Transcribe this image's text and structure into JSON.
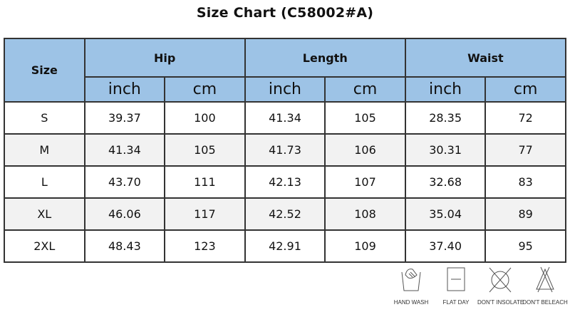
{
  "title": "Size Chart  (C58002#A)",
  "headers": {
    "size": "Size",
    "groups": [
      "Hip",
      "Length",
      "Waist"
    ],
    "units": [
      "inch",
      "cm",
      "inch",
      "cm",
      "inch",
      "cm"
    ]
  },
  "rows": [
    [
      "S",
      "39.37",
      "100",
      "41.34",
      "105",
      "28.35",
      "72"
    ],
    [
      "M",
      "41.34",
      "105",
      "41.73",
      "106",
      "30.31",
      "77"
    ],
    [
      "L",
      "43.70",
      "111",
      "42.13",
      "107",
      "32.68",
      "83"
    ],
    [
      "XL",
      "46.06",
      "117",
      "42.52",
      "108",
      "35.04",
      "89"
    ],
    [
      "2XL",
      "48.43",
      "123",
      "42.91",
      "109",
      "37.40",
      "95"
    ]
  ],
  "care": [
    {
      "icon": "hand-wash-icon",
      "label": "HAND WASH"
    },
    {
      "icon": "flat-dry-icon",
      "label": "FLAT DAY"
    },
    {
      "icon": "dont-insolate-icon",
      "label": "DON'T INSOLATE"
    },
    {
      "icon": "dont-bleach-icon",
      "label": "DON'T BELEACH"
    }
  ],
  "colors": {
    "header": "#9dc3e6",
    "alt_row": "#f2f2f2"
  }
}
